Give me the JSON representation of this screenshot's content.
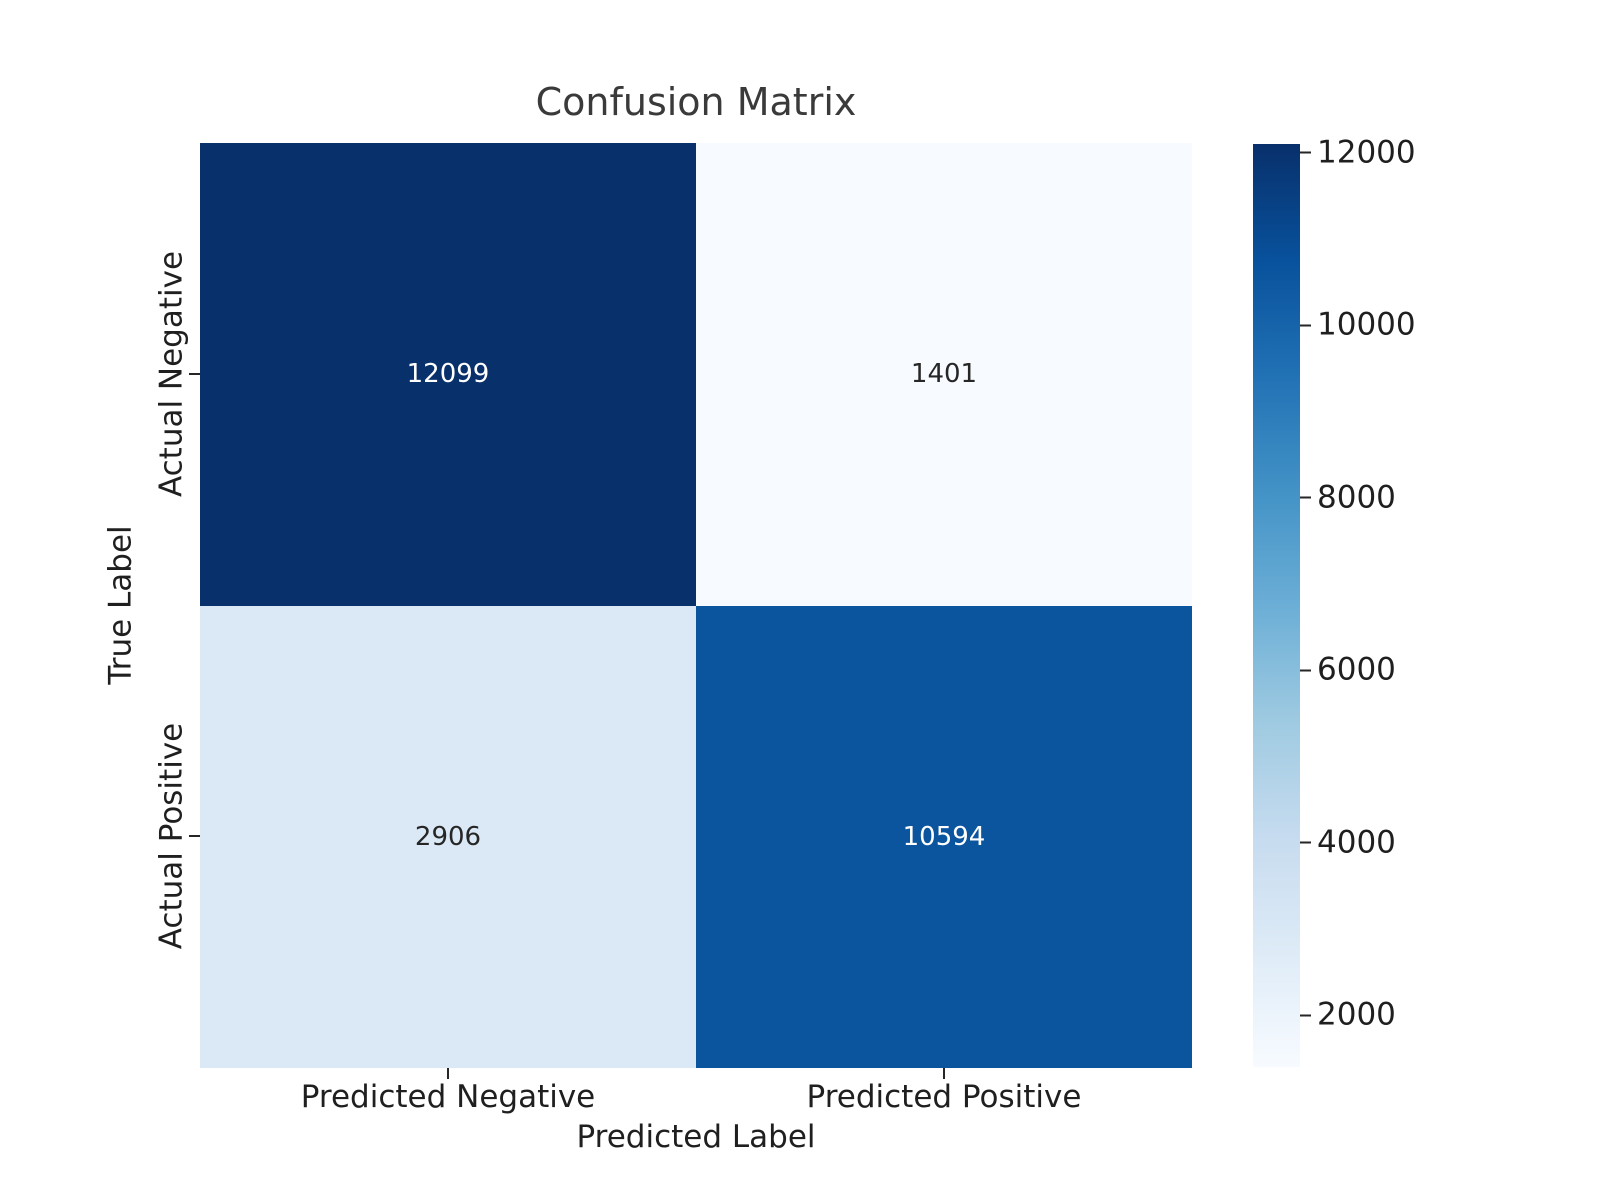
{
  "chart_data": {
    "type": "heatmap",
    "title": "Confusion Matrix",
    "xlabel": "Predicted Label",
    "ylabel": "True Label",
    "x_categories": [
      "Predicted Negative",
      "Predicted Positive"
    ],
    "y_categories": [
      "Actual Negative",
      "Actual Positive"
    ],
    "matrix": [
      [
        12099,
        1401
      ],
      [
        2906,
        10594
      ]
    ],
    "colormap": "Blues",
    "vmin": 1401,
    "vmax": 12099,
    "colorbar_ticks": [
      "2000",
      "4000",
      "6000",
      "8000",
      "10000",
      "12000"
    ],
    "legend_position": "right-colorbar",
    "grid": "off",
    "cells": [
      {
        "row": "Actual Negative",
        "col": "Predicted Negative",
        "value": "12099",
        "bg": "#08306b",
        "fg": "#ffffff"
      },
      {
        "row": "Actual Negative",
        "col": "Predicted Positive",
        "value": "1401",
        "bg": "#f7fbff",
        "fg": "#262626"
      },
      {
        "row": "Actual Positive",
        "col": "Predicted Negative",
        "value": "2906",
        "bg": "#dbe9f6",
        "fg": "#262626"
      },
      {
        "row": "Actual Positive",
        "col": "Predicted Positive",
        "value": "10594",
        "bg": "#0b559f",
        "fg": "#ffffff"
      }
    ],
    "colors": {
      "title_text": "#3a3a3a",
      "label_text": "#1f1f1f",
      "tick_mark": "#262626",
      "background": "#ffffff"
    }
  }
}
